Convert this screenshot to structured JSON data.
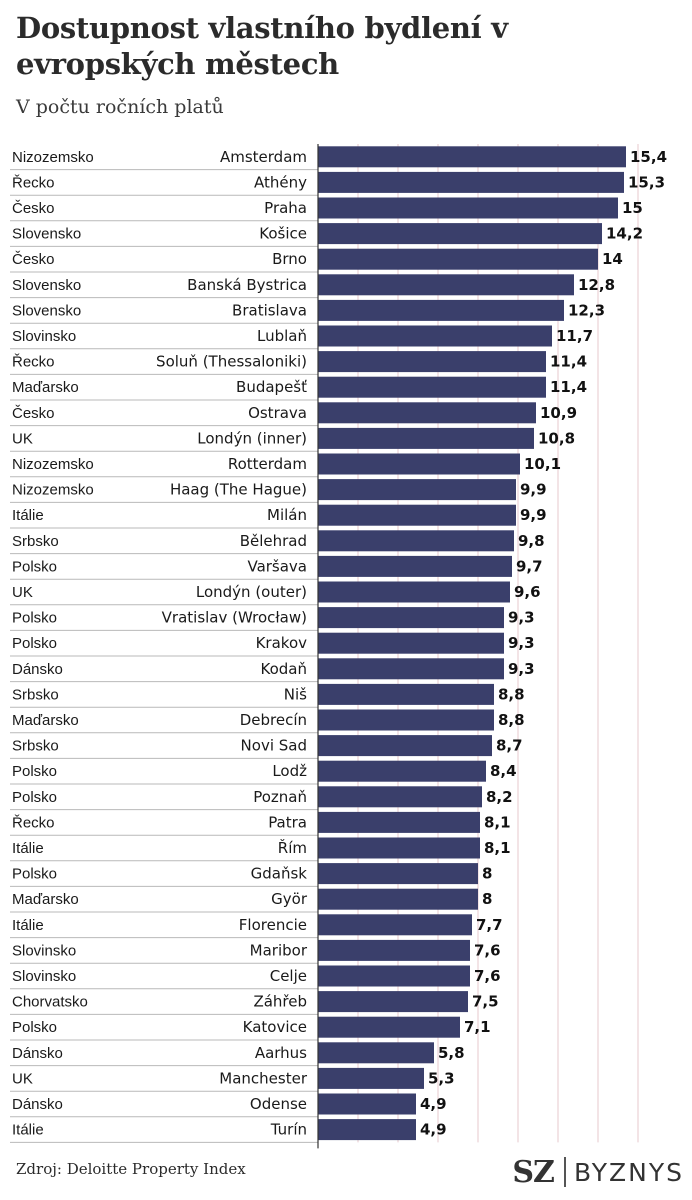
{
  "header": {
    "title": "Dostupnost vlastního bydlení v evropských městech",
    "subtitle": "V počtu ročních platů"
  },
  "footer": {
    "source": "Zdroj: Deloitte Property Index",
    "logo_sz": "SZ",
    "logo_byznys": "BYZNYS"
  },
  "colors": {
    "bar": "#3a3f6b",
    "gridline": "#e7c8cc",
    "row_separator": "#b9b9b9",
    "axis": "#333333"
  },
  "chart_data": {
    "type": "bar",
    "orientation": "horizontal",
    "title": "Dostupnost vlastního bydlení v evropských městech",
    "subtitle": "V počtu ročních platů",
    "xlim": [
      0,
      16
    ],
    "grid": true,
    "grid_step": 2,
    "rows": [
      {
        "country": "Nizozemsko",
        "city": "Amsterdam",
        "value": 15.4,
        "label": "15,4"
      },
      {
        "country": "Řecko",
        "city": "Athény",
        "value": 15.3,
        "label": "15,3"
      },
      {
        "country": "Česko",
        "city": "Praha",
        "value": 15,
        "label": "15"
      },
      {
        "country": "Slovensko",
        "city": "Košice",
        "value": 14.2,
        "label": "14,2"
      },
      {
        "country": "Česko",
        "city": "Brno",
        "value": 14,
        "label": "14"
      },
      {
        "country": "Slovensko",
        "city": "Banská Bystrica",
        "value": 12.8,
        "label": "12,8"
      },
      {
        "country": "Slovensko",
        "city": "Bratislava",
        "value": 12.3,
        "label": "12,3"
      },
      {
        "country": "Slovinsko",
        "city": "Lublaň",
        "value": 11.7,
        "label": "11,7"
      },
      {
        "country": "Řecko",
        "city": "Soluň (Thessaloniki)",
        "value": 11.4,
        "label": "11,4"
      },
      {
        "country": "Maďarsko",
        "city": "Budapešť",
        "value": 11.4,
        "label": "11,4"
      },
      {
        "country": "Česko",
        "city": "Ostrava",
        "value": 10.9,
        "label": "10,9"
      },
      {
        "country": "UK",
        "city": "Londýn (inner)",
        "value": 10.8,
        "label": "10,8"
      },
      {
        "country": "Nizozemsko",
        "city": "Rotterdam",
        "value": 10.1,
        "label": "10,1"
      },
      {
        "country": "Nizozemsko",
        "city": "Haag (The Hague)",
        "value": 9.9,
        "label": "9,9"
      },
      {
        "country": "Itálie",
        "city": "Milán",
        "value": 9.9,
        "label": "9,9"
      },
      {
        "country": "Srbsko",
        "city": "Bělehrad",
        "value": 9.8,
        "label": "9,8"
      },
      {
        "country": "Polsko",
        "city": "Varšava",
        "value": 9.7,
        "label": "9,7"
      },
      {
        "country": "UK",
        "city": "Londýn (outer)",
        "value": 9.6,
        "label": "9,6"
      },
      {
        "country": "Polsko",
        "city": "Vratislav (Wrocław)",
        "value": 9.3,
        "label": "9,3"
      },
      {
        "country": "Polsko",
        "city": "Krakov",
        "value": 9.3,
        "label": "9,3"
      },
      {
        "country": "Dánsko",
        "city": "Kodaň",
        "value": 9.3,
        "label": "9,3"
      },
      {
        "country": "Srbsko",
        "city": "Niš",
        "value": 8.8,
        "label": "8,8"
      },
      {
        "country": "Maďarsko",
        "city": "Debrecín",
        "value": 8.8,
        "label": "8,8"
      },
      {
        "country": "Srbsko",
        "city": "Novi Sad",
        "value": 8.7,
        "label": "8,7"
      },
      {
        "country": "Polsko",
        "city": "Lodž",
        "value": 8.4,
        "label": "8,4"
      },
      {
        "country": "Polsko",
        "city": "Poznaň",
        "value": 8.2,
        "label": "8,2"
      },
      {
        "country": "Řecko",
        "city": "Patra",
        "value": 8.1,
        "label": "8,1"
      },
      {
        "country": "Itálie",
        "city": "Řím",
        "value": 8.1,
        "label": "8,1"
      },
      {
        "country": "Polsko",
        "city": "Gdaňsk",
        "value": 8,
        "label": "8"
      },
      {
        "country": "Maďarsko",
        "city": "Györ",
        "value": 8,
        "label": "8"
      },
      {
        "country": "Itálie",
        "city": "Florencie",
        "value": 7.7,
        "label": "7,7"
      },
      {
        "country": "Slovinsko",
        "city": "Maribor",
        "value": 7.6,
        "label": "7,6"
      },
      {
        "country": "Slovinsko",
        "city": "Celje",
        "value": 7.6,
        "label": "7,6"
      },
      {
        "country": "Chorvatsko",
        "city": "Záhřeb",
        "value": 7.5,
        "label": "7,5"
      },
      {
        "country": "Polsko",
        "city": "Katovice",
        "value": 7.1,
        "label": "7,1"
      },
      {
        "country": "Dánsko",
        "city": "Aarhus",
        "value": 5.8,
        "label": "5,8"
      },
      {
        "country": "UK",
        "city": "Manchester",
        "value": 5.3,
        "label": "5,3"
      },
      {
        "country": "Dánsko",
        "city": "Odense",
        "value": 4.9,
        "label": "4,9"
      },
      {
        "country": "Itálie",
        "city": "Turín",
        "value": 4.9,
        "label": "4,9"
      }
    ]
  }
}
